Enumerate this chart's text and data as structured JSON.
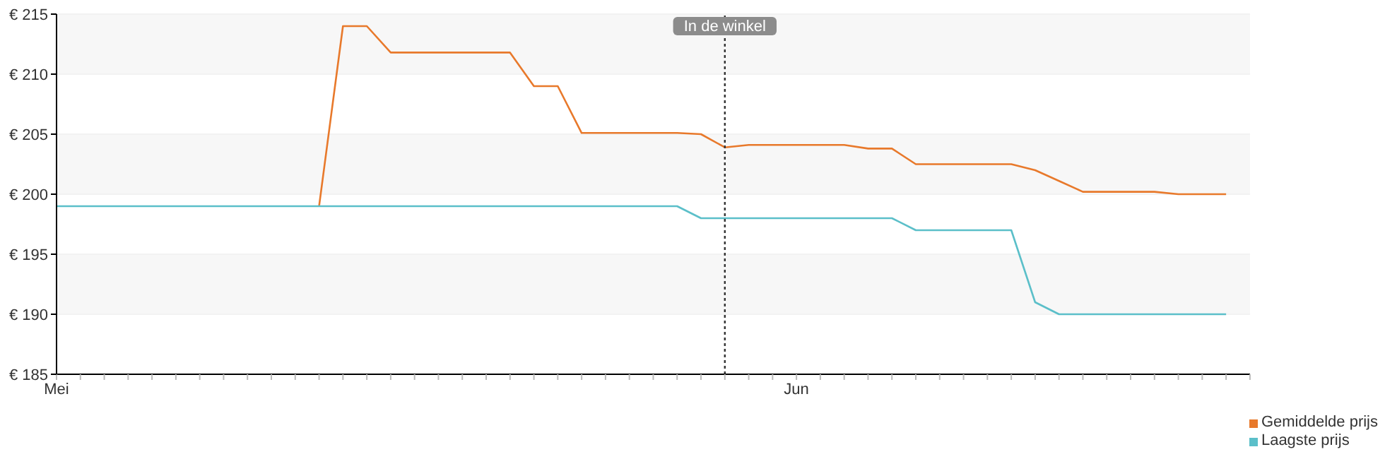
{
  "chart_data": {
    "type": "line",
    "categories": [
      "Mei",
      null,
      null,
      null,
      null,
      null,
      null,
      null,
      null,
      null,
      null,
      null,
      null,
      null,
      null,
      null,
      null,
      null,
      null,
      null,
      null,
      null,
      null,
      null,
      null,
      null,
      null,
      null,
      null,
      null,
      null,
      "Jun",
      null,
      null,
      null,
      null,
      null,
      null,
      null,
      null,
      null,
      null,
      null,
      null,
      null,
      null,
      null,
      null,
      null,
      null,
      null
    ],
    "series": [
      {
        "name": "Gemiddelde prijs",
        "color": "#e8792b",
        "values": [
          null,
          null,
          null,
          null,
          null,
          null,
          null,
          null,
          null,
          null,
          null,
          199,
          214,
          214,
          211.8,
          211.8,
          211.8,
          211.8,
          211.8,
          211.8,
          209,
          209,
          205.1,
          205.1,
          205.1,
          205.1,
          205.1,
          205,
          203.9,
          204.1,
          204.1,
          204.1,
          204.1,
          204.1,
          203.8,
          203.8,
          202.5,
          202.5,
          202.5,
          202.5,
          202.5,
          202,
          201.1,
          200.2,
          200.2,
          200.2,
          200.2,
          200,
          200,
          200,
          null
        ]
      },
      {
        "name": "Laagste prijs",
        "color": "#5bbfc9",
        "values": [
          199,
          199,
          199,
          199,
          199,
          199,
          199,
          199,
          199,
          199,
          199,
          199,
          199,
          199,
          199,
          199,
          199,
          199,
          199,
          199,
          199,
          199,
          199,
          199,
          199,
          199,
          199,
          198,
          198,
          198,
          198,
          198,
          198,
          198,
          198,
          198,
          197,
          197,
          197,
          197,
          197,
          191,
          190,
          190,
          190,
          190,
          190,
          190,
          190,
          190,
          null
        ]
      }
    ],
    "ylim": [
      185,
      215
    ],
    "yticks": [
      {
        "value": 185,
        "label": "€ 185"
      },
      {
        "value": 190,
        "label": "€ 190"
      },
      {
        "value": 195,
        "label": "€ 195"
      },
      {
        "value": 200,
        "label": "€ 200"
      },
      {
        "value": 205,
        "label": "€ 205"
      },
      {
        "value": 210,
        "label": "€ 210"
      },
      {
        "value": 215,
        "label": "€ 215"
      }
    ],
    "annotations": [
      "In de winkel"
    ],
    "grid": "y",
    "legend": "bottom right",
    "marker": "none",
    "line_style": "solid"
  }
}
